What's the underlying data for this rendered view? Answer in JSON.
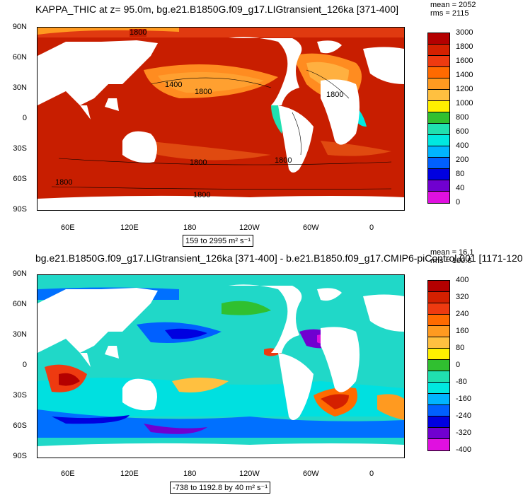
{
  "panels": [
    {
      "title": "KAPPA_THIC at z=  95.0m, bg.e21.B1850G.f09_g17.LIGtransient_126ka [371-400]",
      "stats": {
        "mean": "mean = 2052",
        "rms": "rms = 2115"
      },
      "range_text": "159 to 2995 m² s⁻¹",
      "contour_labels": [
        "1800",
        "1400",
        "1800",
        "1800",
        "1800",
        "1800",
        "1800",
        "1800"
      ],
      "colorbar_labels": [
        "3000",
        "1800",
        "1600",
        "1400",
        "1200",
        "1000",
        "800",
        "600",
        "400",
        "200",
        "80",
        "40",
        "0"
      ],
      "colors": [
        "#b40000",
        "#d42000",
        "#ee3a10",
        "#ff6a00",
        "#ff9a20",
        "#ffc040",
        "#fff000",
        "#30c030",
        "#20e0b0",
        "#00e8e0",
        "#00b4ff",
        "#0060ff",
        "#0000e0",
        "#7000d0",
        "#e010e0",
        "#c8c8c8",
        "#707070"
      ]
    },
    {
      "title": "bg.e21.B1850G.f09_g17.LIGtransient_126ka [371-400] - b.e21.B1850.f09_g17.CMIP6-piControl.001 [1171-120",
      "stats": {
        "mean": "mean = 16.1",
        "rms": "rms = 160.6"
      },
      "range_text": "-738 to 1192.8 by 40 m² s⁻¹",
      "colorbar_labels": [
        "400",
        "320",
        "240",
        "160",
        "80",
        "0",
        "-80",
        "-160",
        "-240",
        "-320",
        "-400"
      ],
      "colors": [
        "#b40000",
        "#d42000",
        "#ee3a10",
        "#ff6a00",
        "#ff9a20",
        "#ffc040",
        "#fff000",
        "#30c030",
        "#20e0b0",
        "#00e8e0",
        "#00b4ff",
        "#0060ff",
        "#0000e0",
        "#7000d0",
        "#e010e0",
        "#c8c8c8",
        "#707070"
      ]
    }
  ],
  "axes": {
    "lat_ticks": [
      "90N",
      "60N",
      "30N",
      "0",
      "30S",
      "60S",
      "90S"
    ],
    "lon_ticks": [
      "60E",
      "120E",
      "180",
      "120W",
      "60W",
      "0"
    ]
  },
  "chart_data": [
    {
      "type": "heatmap",
      "title": "KAPPA_THIC at z=  95.0m, bg.e21.B1850G.f09_g17.LIGtransient_126ka [371-400]",
      "mean": 2052,
      "rms": 2115,
      "data_range": [
        159,
        2995
      ],
      "units": "m2 s-1",
      "x_ticks": [
        "60E",
        "120E",
        "180",
        "120W",
        "60W",
        "0"
      ],
      "y_ticks": [
        "90N",
        "60N",
        "30N",
        "0",
        "30S",
        "60S",
        "90S"
      ],
      "levels": [
        0,
        40,
        80,
        200,
        400,
        600,
        800,
        1000,
        1200,
        1400,
        1600,
        1800,
        3000
      ],
      "grid": false,
      "legend": "right"
    },
    {
      "type": "heatmap",
      "title": "bg.e21.B1850G.f09_g17.LIGtransient_126ka [371-400] - b.e21.B1850.f09_g17.CMIP6-piControl.001 [1171-120",
      "mean": 16.1,
      "rms": 160.6,
      "data_range": [
        -738,
        1192.8
      ],
      "contour_interval": 40,
      "units": "m2 s-1",
      "x_ticks": [
        "60E",
        "120E",
        "180",
        "120W",
        "60W",
        "0"
      ],
      "y_ticks": [
        "90N",
        "60N",
        "30N",
        "0",
        "30S",
        "60S",
        "90S"
      ],
      "levels": [
        -400,
        -320,
        -240,
        -160,
        -80,
        0,
        80,
        160,
        240,
        320,
        400
      ],
      "grid": false,
      "legend": "right"
    }
  ]
}
